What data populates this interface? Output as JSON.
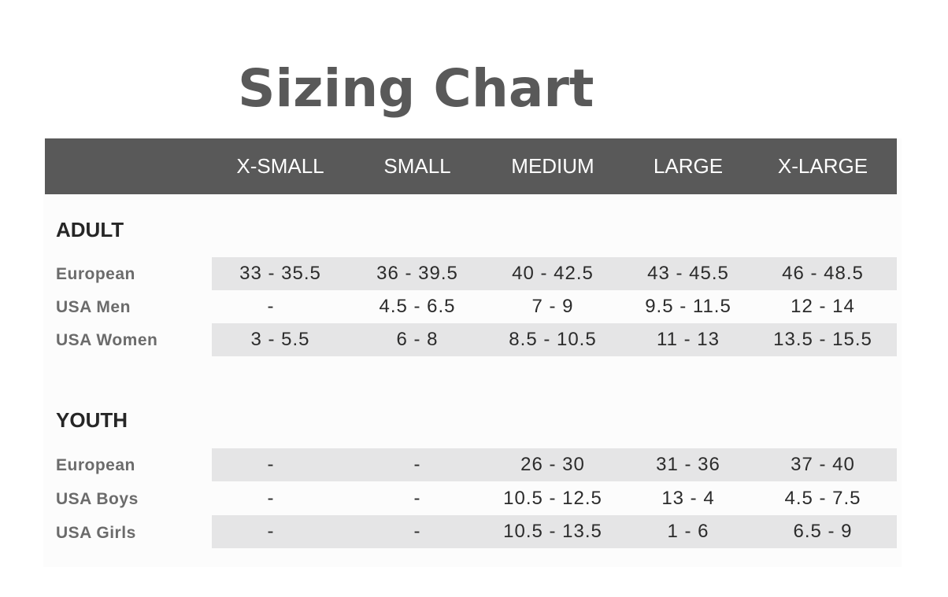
{
  "title": "Sizing Chart",
  "columns": [
    "X-SMALL",
    "SMALL",
    "MEDIUM",
    "LARGE",
    "X-LARGE"
  ],
  "sections": [
    {
      "name": "ADULT",
      "rows": [
        {
          "label": "European",
          "values": [
            "33 - 35.5",
            "36 - 39.5",
            "40 - 42.5",
            "43 - 45.5",
            "46 - 48.5"
          ]
        },
        {
          "label": "USA Men",
          "values": [
            "-",
            "4.5 - 6.5",
            "7 - 9",
            "9.5 - 11.5",
            "12 - 14"
          ]
        },
        {
          "label": "USA Women",
          "values": [
            "3 - 5.5",
            "6 - 8",
            "8.5 - 10.5",
            "11 - 13",
            "13.5 - 15.5"
          ]
        }
      ]
    },
    {
      "name": "YOUTH",
      "rows": [
        {
          "label": "European",
          "values": [
            "-",
            "-",
            "26 - 30",
            "31 - 36",
            "37 - 40"
          ]
        },
        {
          "label": "USA Boys",
          "values": [
            "-",
            "-",
            "10.5 - 12.5",
            "13 - 4",
            "4.5 - 7.5"
          ]
        },
        {
          "label": "USA Girls",
          "values": [
            "-",
            "-",
            "10.5 - 13.5",
            "1 - 6",
            "6.5 - 9"
          ]
        }
      ]
    }
  ],
  "colors": {
    "header_bg": "#595959",
    "band_bg": "#e5e5e6",
    "title": "#595959"
  }
}
